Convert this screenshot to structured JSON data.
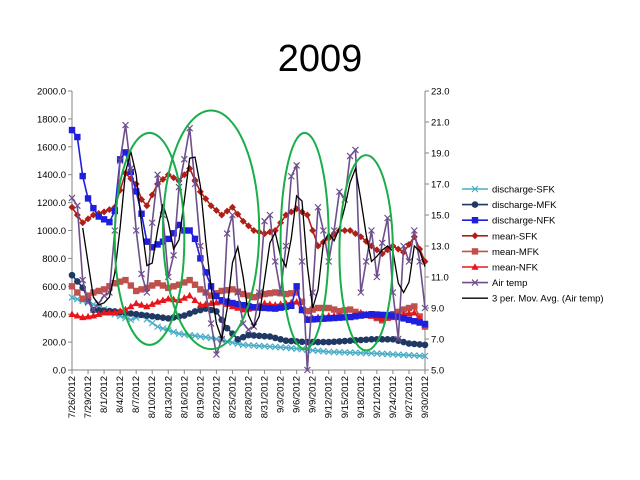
{
  "slide": {
    "title": "2009"
  },
  "chart_data": {
    "type": "line",
    "title": "2009",
    "xlabel": "",
    "ylabel_left": "",
    "ylabel_right": "",
    "ylim_left": [
      0,
      2000
    ],
    "ylim_right": [
      5,
      23
    ],
    "y_ticks_left": [
      "0.0",
      "200.0",
      "400.0",
      "600.0",
      "800.0",
      "1000.0",
      "1200.0",
      "1400.0",
      "1600.0",
      "1800.0",
      "2000.0"
    ],
    "y_ticks_right": [
      "5.0",
      "7.0",
      "9.0",
      "11.0",
      "13.0",
      "15.0",
      "17.0",
      "19.0",
      "21.0",
      "23.0"
    ],
    "x_tick_labels": [
      "7/26/2012",
      "7/29/2012",
      "8/1/2012",
      "8/4/2012",
      "8/7/2012",
      "8/10/2012",
      "8/13/2012",
      "8/16/2012",
      "8/19/2012",
      "8/22/2012",
      "8/25/2012",
      "8/28/2012",
      "8/31/2012",
      "9/3/2012",
      "9/6/2012",
      "9/9/2012",
      "9/12/2012",
      "9/15/2012",
      "9/18/2012",
      "9/21/2012",
      "9/24/2012",
      "9/27/2012",
      "9/30/2012"
    ],
    "n_points": 67,
    "legend_position": "right",
    "series": [
      {
        "name": "discharge-SFK",
        "axis": "left",
        "color": "#4BACC6",
        "marker": "x",
        "keyframes": [
          [
            0,
            520
          ],
          [
            4,
            470
          ],
          [
            8,
            400
          ],
          [
            11,
            360
          ],
          [
            13,
            390
          ],
          [
            16,
            310
          ],
          [
            20,
            260
          ],
          [
            26,
            230
          ],
          [
            32,
            180
          ],
          [
            40,
            160
          ],
          [
            48,
            130
          ],
          [
            56,
            120
          ],
          [
            66,
            100
          ]
        ]
      },
      {
        "name": "discharge-MFK",
        "axis": "left",
        "color": "#1F3864",
        "marker": "circle",
        "keyframes": [
          [
            0,
            680
          ],
          [
            2,
            590
          ],
          [
            4,
            430
          ],
          [
            8,
            420
          ],
          [
            12,
            400
          ],
          [
            16,
            380
          ],
          [
            18,
            370
          ],
          [
            21,
            390
          ],
          [
            23,
            420
          ],
          [
            25,
            440
          ],
          [
            27,
            420
          ],
          [
            29,
            300
          ],
          [
            31,
            220
          ],
          [
            33,
            250
          ],
          [
            37,
            240
          ],
          [
            40,
            210
          ],
          [
            44,
            200
          ],
          [
            48,
            200
          ],
          [
            52,
            210
          ],
          [
            56,
            220
          ],
          [
            60,
            220
          ],
          [
            63,
            190
          ],
          [
            66,
            180
          ]
        ]
      },
      {
        "name": "discharge-NFK",
        "axis": "left",
        "color": "#1F1FE0",
        "marker": "square",
        "keyframes": [
          [
            0,
            1720
          ],
          [
            1,
            1670
          ],
          [
            2,
            1390
          ],
          [
            3,
            1230
          ],
          [
            4,
            1160
          ],
          [
            5,
            1100
          ],
          [
            6,
            1080
          ],
          [
            7,
            1060
          ],
          [
            8,
            1140
          ],
          [
            9,
            1510
          ],
          [
            10,
            1560
          ],
          [
            11,
            1420
          ],
          [
            12,
            1280
          ],
          [
            13,
            1120
          ],
          [
            14,
            920
          ],
          [
            15,
            880
          ],
          [
            16,
            900
          ],
          [
            17,
            920
          ],
          [
            18,
            940
          ],
          [
            19,
            980
          ],
          [
            20,
            1040
          ],
          [
            21,
            1000
          ],
          [
            22,
            1000
          ],
          [
            23,
            940
          ],
          [
            24,
            800
          ],
          [
            25,
            700
          ],
          [
            26,
            600
          ],
          [
            27,
            530
          ],
          [
            28,
            500
          ],
          [
            30,
            480
          ],
          [
            34,
            450
          ],
          [
            38,
            440
          ],
          [
            41,
            460
          ],
          [
            42,
            600
          ],
          [
            43,
            430
          ],
          [
            44,
            360
          ],
          [
            48,
            370
          ],
          [
            52,
            380
          ],
          [
            56,
            400
          ],
          [
            60,
            390
          ],
          [
            62,
            370
          ],
          [
            66,
            330
          ]
        ]
      },
      {
        "name": "mean-SFK",
        "axis": "right",
        "color": "#B01F16",
        "marker": "diamond",
        "keyframes": [
          [
            0,
            15.5
          ],
          [
            2,
            14.5
          ],
          [
            4,
            15.0
          ],
          [
            6,
            15.2
          ],
          [
            8,
            15.5
          ],
          [
            10,
            17.7
          ],
          [
            12,
            17.0
          ],
          [
            13,
            16.0
          ],
          [
            14,
            15.6
          ],
          [
            16,
            17.0
          ],
          [
            18,
            17.6
          ],
          [
            20,
            17.2
          ],
          [
            22,
            18.0
          ],
          [
            24,
            16.5
          ],
          [
            26,
            15.6
          ],
          [
            28,
            15.0
          ],
          [
            30,
            15.5
          ],
          [
            32,
            14.6
          ],
          [
            34,
            14.0
          ],
          [
            36,
            13.8
          ],
          [
            38,
            14.0
          ],
          [
            40,
            15.0
          ],
          [
            42,
            15.4
          ],
          [
            44,
            15.0
          ],
          [
            46,
            13.0
          ],
          [
            48,
            13.5
          ],
          [
            50,
            14.0
          ],
          [
            52,
            14.0
          ],
          [
            54,
            13.6
          ],
          [
            56,
            13.0
          ],
          [
            58,
            12.5
          ],
          [
            60,
            13.0
          ],
          [
            62,
            12.6
          ],
          [
            64,
            13.6
          ],
          [
            66,
            12.0
          ]
        ]
      },
      {
        "name": "mean-MFK",
        "axis": "right",
        "color": "#C0504D",
        "marker": "square",
        "keyframes": [
          [
            0,
            10.4
          ],
          [
            2,
            9.6
          ],
          [
            4,
            10.0
          ],
          [
            6,
            10.2
          ],
          [
            8,
            10.6
          ],
          [
            10,
            10.8
          ],
          [
            12,
            10.1
          ],
          [
            14,
            10.3
          ],
          [
            16,
            10.6
          ],
          [
            18,
            10.3
          ],
          [
            20,
            10.5
          ],
          [
            22,
            10.8
          ],
          [
            24,
            10.2
          ],
          [
            26,
            9.8
          ],
          [
            28,
            10.1
          ],
          [
            30,
            10.2
          ],
          [
            32,
            9.9
          ],
          [
            34,
            9.7
          ],
          [
            36,
            9.9
          ],
          [
            38,
            10.0
          ],
          [
            40,
            9.9
          ],
          [
            42,
            10.0
          ],
          [
            44,
            8.8
          ],
          [
            46,
            9.0
          ],
          [
            48,
            9.0
          ],
          [
            50,
            8.8
          ],
          [
            52,
            8.9
          ],
          [
            54,
            8.6
          ],
          [
            56,
            8.5
          ],
          [
            58,
            8.2
          ],
          [
            60,
            8.6
          ],
          [
            62,
            8.9
          ],
          [
            64,
            9.1
          ],
          [
            66,
            7.8
          ]
        ]
      },
      {
        "name": "mean-NFK",
        "axis": "right",
        "color": "#E8161A",
        "marker": "triangle",
        "keyframes": [
          [
            0,
            8.6
          ],
          [
            2,
            8.4
          ],
          [
            4,
            8.5
          ],
          [
            6,
            8.7
          ],
          [
            8,
            8.7
          ],
          [
            10,
            8.9
          ],
          [
            12,
            9.3
          ],
          [
            14,
            9.1
          ],
          [
            16,
            9.4
          ],
          [
            18,
            9.6
          ],
          [
            20,
            9.5
          ],
          [
            22,
            9.8
          ],
          [
            24,
            9.2
          ],
          [
            26,
            9.3
          ],
          [
            28,
            9.4
          ],
          [
            30,
            9.1
          ],
          [
            32,
            8.9
          ],
          [
            34,
            9.0
          ],
          [
            36,
            9.3
          ],
          [
            38,
            9.2
          ],
          [
            40,
            9.3
          ],
          [
            42,
            9.4
          ],
          [
            44,
            8.3
          ],
          [
            46,
            8.4
          ],
          [
            48,
            8.5
          ],
          [
            50,
            8.5
          ],
          [
            52,
            8.4
          ],
          [
            54,
            8.7
          ],
          [
            56,
            8.5
          ],
          [
            58,
            8.3
          ],
          [
            60,
            8.4
          ],
          [
            62,
            8.6
          ],
          [
            64,
            8.7
          ],
          [
            66,
            7.9
          ]
        ]
      },
      {
        "name": "Air temp",
        "axis": "right",
        "color": "#6E4F8C",
        "marker": "x",
        "keyframes": [
          [
            0,
            16.1
          ],
          [
            1,
            15.6
          ],
          [
            2,
            10.8
          ],
          [
            3,
            9.4
          ],
          [
            4,
            8.9
          ],
          [
            5,
            9.3
          ],
          [
            6,
            9.8
          ],
          [
            7,
            10.0
          ],
          [
            8,
            14.0
          ],
          [
            9,
            18.5
          ],
          [
            10,
            20.8
          ],
          [
            11,
            18.0
          ],
          [
            12,
            14.0
          ],
          [
            13,
            11.2
          ],
          [
            14,
            10.0
          ],
          [
            15,
            14.5
          ],
          [
            16,
            17.6
          ],
          [
            17,
            15.0
          ],
          [
            18,
            11.0
          ],
          [
            19,
            12.4
          ],
          [
            20,
            16.8
          ],
          [
            21,
            18.6
          ],
          [
            22,
            20.6
          ],
          [
            23,
            17.0
          ],
          [
            24,
            13.0
          ],
          [
            25,
            10.0
          ],
          [
            26,
            8.0
          ],
          [
            27,
            6.0
          ],
          [
            28,
            7.0
          ],
          [
            29,
            13.8
          ],
          [
            30,
            15.0
          ],
          [
            31,
            10.0
          ],
          [
            32,
            8.0
          ],
          [
            33,
            7.6
          ],
          [
            34,
            7.8
          ],
          [
            35,
            10.0
          ],
          [
            36,
            14.6
          ],
          [
            37,
            15.0
          ],
          [
            38,
            12.0
          ],
          [
            39,
            10.0
          ],
          [
            40,
            13.0
          ],
          [
            41,
            17.5
          ],
          [
            42,
            18.2
          ],
          [
            43,
            12.0
          ],
          [
            44,
            5.0
          ],
          [
            45,
            10.0
          ],
          [
            46,
            15.5
          ],
          [
            47,
            14.0
          ],
          [
            48,
            12.0
          ],
          [
            49,
            14.0
          ],
          [
            50,
            16.5
          ],
          [
            51,
            16.0
          ],
          [
            52,
            18.8
          ],
          [
            53,
            19.2
          ],
          [
            54,
            10.0
          ],
          [
            55,
            12.0
          ],
          [
            56,
            14.0
          ],
          [
            57,
            11.0
          ],
          [
            58,
            13.2
          ],
          [
            59,
            14.8
          ],
          [
            60,
            10.0
          ],
          [
            61,
            7.0
          ],
          [
            62,
            13.0
          ],
          [
            63,
            12.0
          ],
          [
            64,
            14.0
          ],
          [
            65,
            12.0
          ],
          [
            66,
            9.0
          ]
        ]
      },
      {
        "name": "3 per. Mov. Avg. (Air temp)",
        "axis": "right",
        "color": "#000000",
        "marker": "none",
        "moving_average_of": "Air temp",
        "period": 3
      }
    ],
    "highlight_ellipses": [
      {
        "x_index_range": [
          8,
          21
        ],
        "y_range_left": [
          180,
          1700
        ]
      },
      {
        "x_index_range": [
          17,
          35
        ],
        "y_range_left": [
          150,
          1860
        ]
      },
      {
        "x_index_range": [
          39,
          48
        ],
        "y_range_left": [
          150,
          1700
        ]
      },
      {
        "x_index_range": [
          50,
          60
        ],
        "y_range_left": [
          140,
          1540
        ]
      }
    ]
  }
}
